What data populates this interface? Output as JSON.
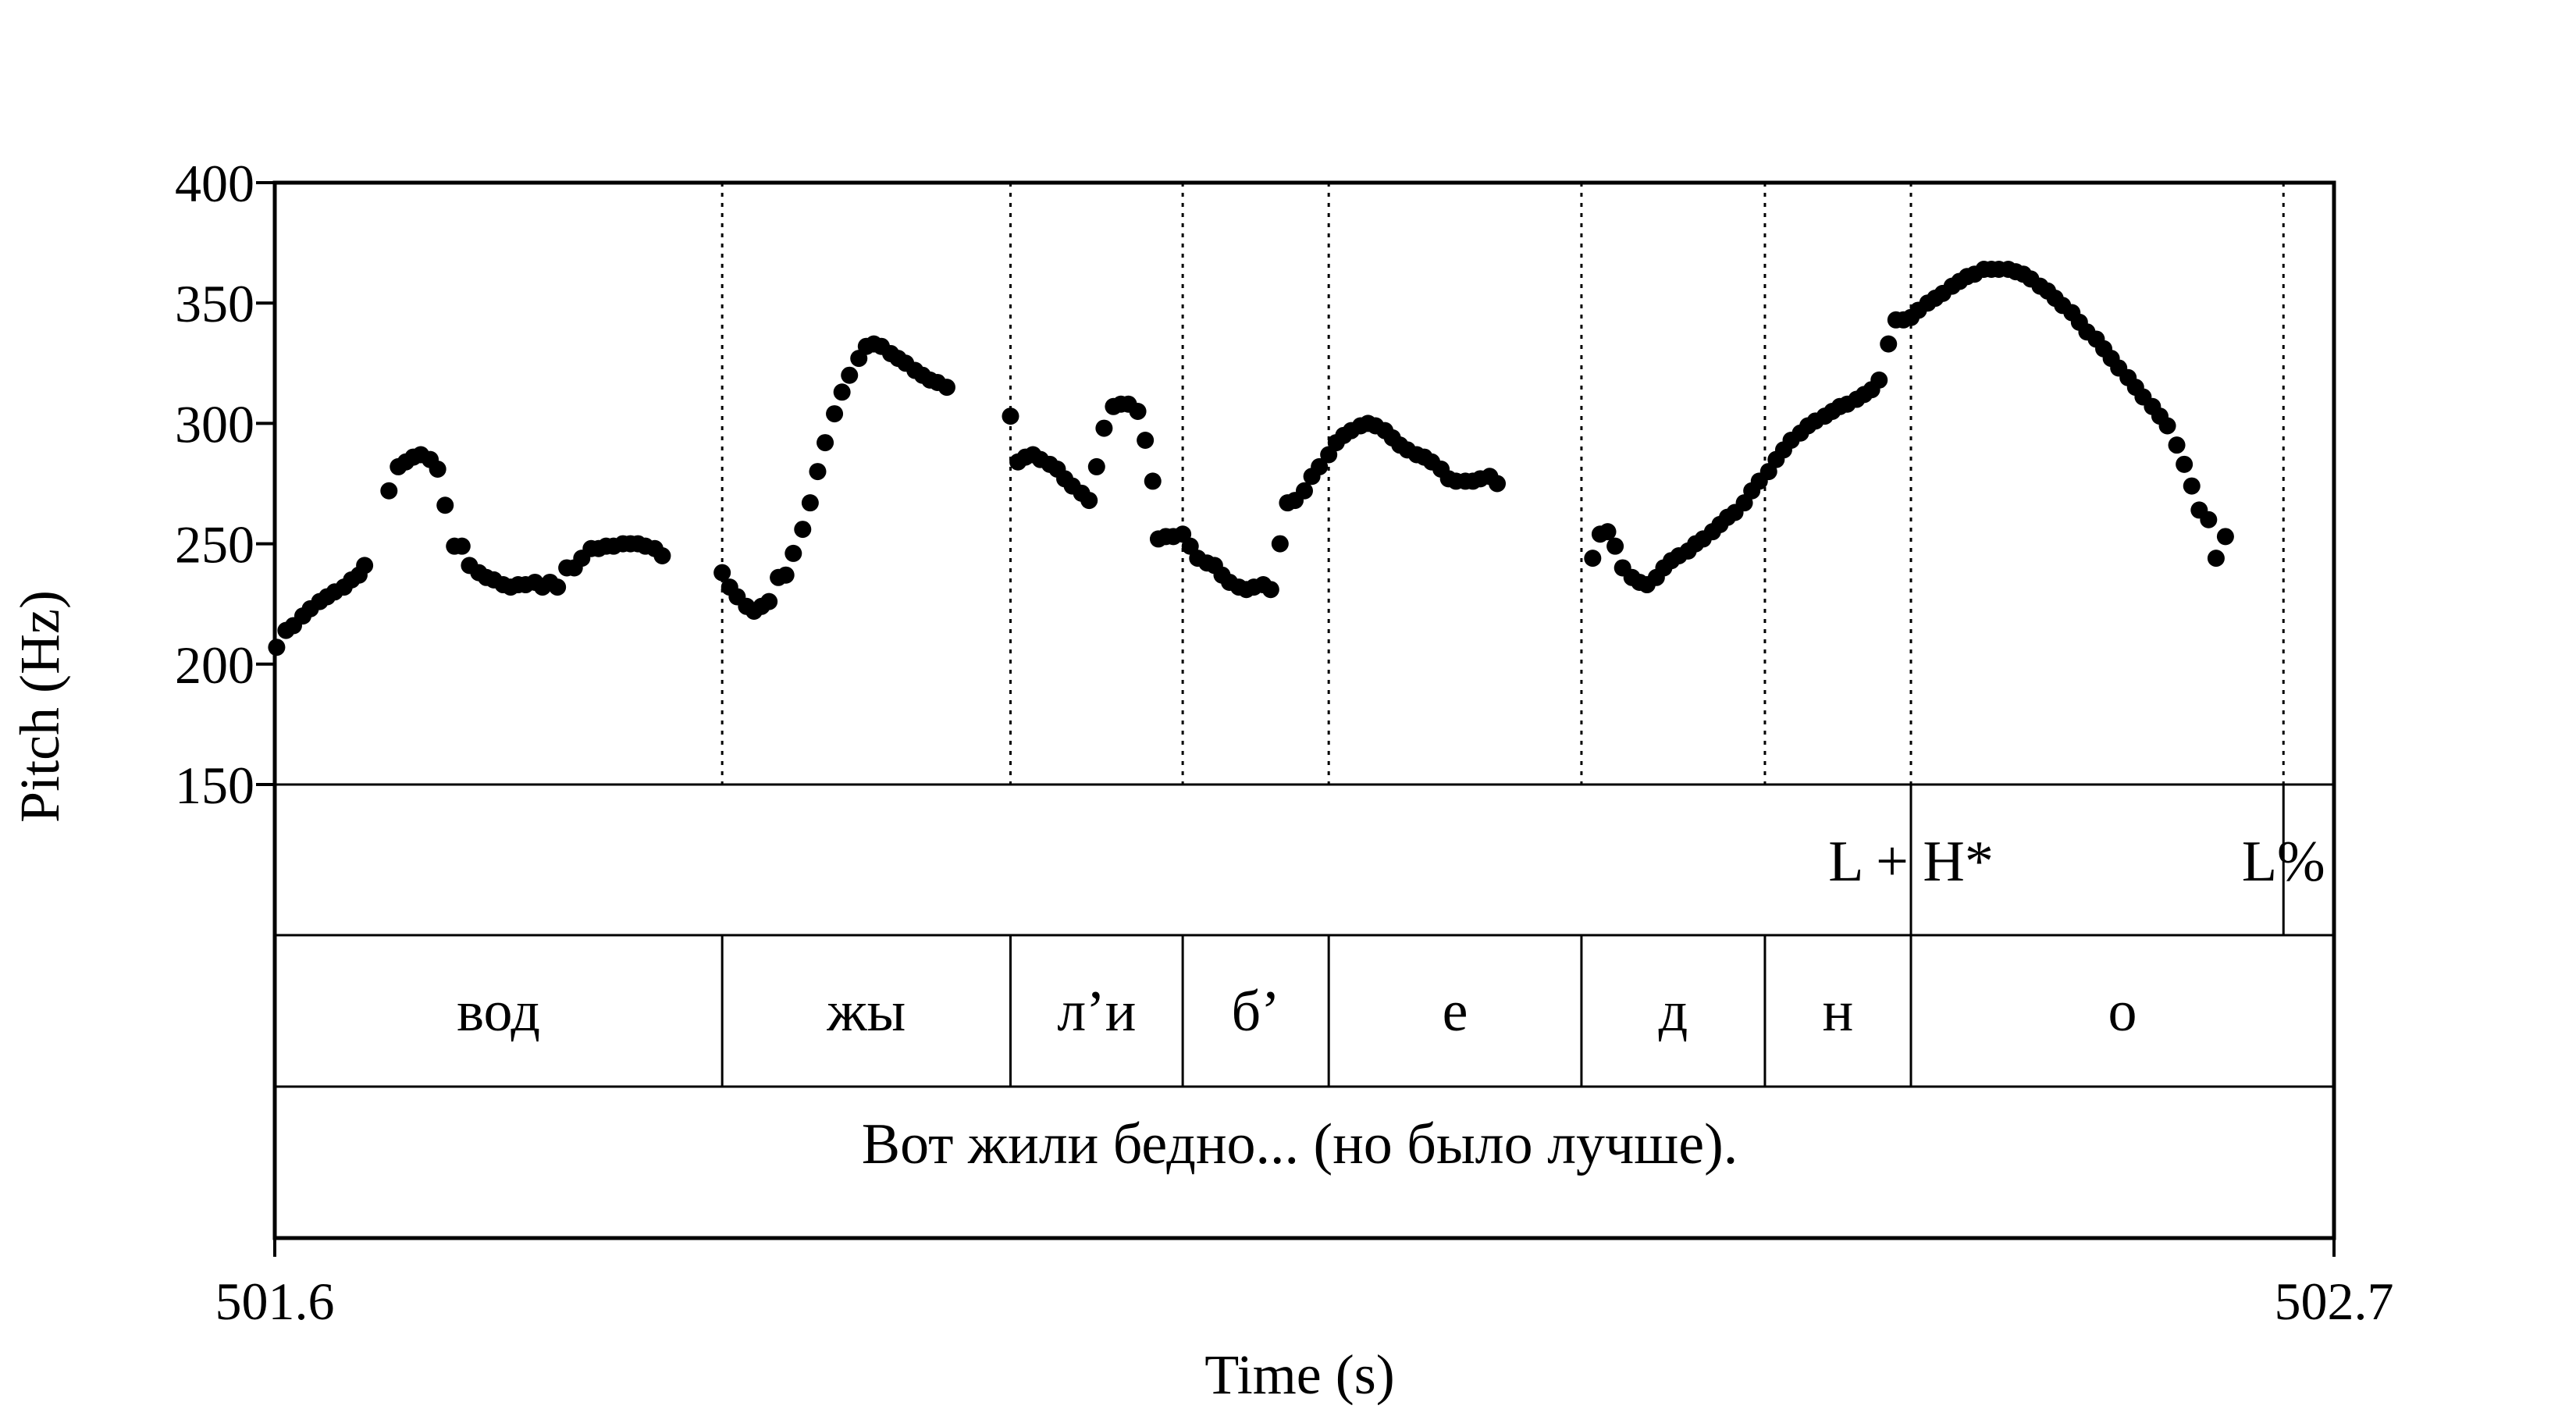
{
  "chart_data": {
    "type": "scatter",
    "ylabel": "Pitch (Hz)",
    "xlabel": "Time (s)",
    "xlim": [
      501.6,
      502.7
    ],
    "ylim": [
      150,
      400
    ],
    "yticks": [
      "400",
      "350",
      "300",
      "250",
      "200",
      "150"
    ],
    "xticks": [
      "501.6",
      "502.7"
    ],
    "tones": [
      {
        "label": "L + H*",
        "t": 502.474
      },
      {
        "label": "L%",
        "t": 502.673
      }
    ],
    "segments": [
      {
        "label": "вод",
        "start": 501.6,
        "end": 501.839
      },
      {
        "label": "жы",
        "start": 501.839,
        "end": 501.993
      },
      {
        "label": "л’и",
        "start": 501.993,
        "end": 502.085
      },
      {
        "label": "б’",
        "start": 502.085,
        "end": 502.163
      },
      {
        "label": "е",
        "start": 502.163,
        "end": 502.298
      },
      {
        "label": "д",
        "start": 502.298,
        "end": 502.396
      },
      {
        "label": "н",
        "start": 502.396,
        "end": 502.474
      },
      {
        "label": "о",
        "start": 502.474,
        "end": 502.7
      }
    ],
    "sentence": "Вот жили бедно... (но было лучше).",
    "pitch_points": [
      [
        501.601,
        207
      ],
      [
        501.606,
        214
      ],
      [
        501.61,
        216
      ],
      [
        501.615,
        220
      ],
      [
        501.619,
        223
      ],
      [
        501.624,
        226
      ],
      [
        501.628,
        228
      ],
      [
        501.632,
        230
      ],
      [
        501.637,
        232
      ],
      [
        501.641,
        235
      ],
      [
        501.645,
        237
      ],
      [
        501.648,
        241
      ],
      [
        501.661,
        272
      ],
      [
        501.666,
        282
      ],
      [
        501.67,
        284
      ],
      [
        501.674,
        286
      ],
      [
        501.678,
        287
      ],
      [
        501.683,
        285
      ],
      [
        501.687,
        281
      ],
      [
        501.691,
        266
      ],
      [
        501.696,
        249
      ],
      [
        501.7,
        249
      ],
      [
        501.704,
        241
      ],
      [
        501.709,
        238
      ],
      [
        501.713,
        236
      ],
      [
        501.717,
        235
      ],
      [
        501.722,
        233
      ],
      [
        501.726,
        232
      ],
      [
        501.73,
        233
      ],
      [
        501.734,
        233
      ],
      [
        501.739,
        234
      ],
      [
        501.743,
        232
      ],
      [
        501.747,
        234
      ],
      [
        501.751,
        232
      ],
      [
        501.756,
        240
      ],
      [
        501.76,
        240
      ],
      [
        501.764,
        244
      ],
      [
        501.769,
        248
      ],
      [
        501.773,
        248
      ],
      [
        501.777,
        249
      ],
      [
        501.781,
        249
      ],
      [
        501.786,
        250
      ],
      [
        501.79,
        250
      ],
      [
        501.794,
        250
      ],
      [
        501.798,
        249
      ],
      [
        501.803,
        248
      ],
      [
        501.807,
        245
      ],
      [
        501.839,
        238
      ],
      [
        501.843,
        232
      ],
      [
        501.847,
        228
      ],
      [
        501.852,
        224
      ],
      [
        501.856,
        222
      ],
      [
        501.86,
        224
      ],
      [
        501.864,
        226
      ],
      [
        501.869,
        236
      ],
      [
        501.873,
        237
      ],
      [
        501.877,
        246
      ],
      [
        501.882,
        256
      ],
      [
        501.886,
        267
      ],
      [
        501.89,
        280
      ],
      [
        501.894,
        292
      ],
      [
        501.899,
        304
      ],
      [
        501.903,
        313
      ],
      [
        501.907,
        320
      ],
      [
        501.912,
        327
      ],
      [
        501.916,
        332
      ],
      [
        501.92,
        333
      ],
      [
        501.924,
        332
      ],
      [
        501.929,
        329
      ],
      [
        501.933,
        327
      ],
      [
        501.937,
        325
      ],
      [
        501.942,
        322
      ],
      [
        501.946,
        320
      ],
      [
        501.95,
        318
      ],
      [
        501.954,
        317
      ],
      [
        501.959,
        315
      ],
      [
        501.993,
        303
      ],
      [
        501.997,
        284
      ],
      [
        502.001,
        286
      ],
      [
        502.005,
        287
      ],
      [
        502.009,
        285
      ],
      [
        502.014,
        283
      ],
      [
        502.018,
        281
      ],
      [
        502.022,
        277
      ],
      [
        502.026,
        274
      ],
      [
        502.031,
        271
      ],
      [
        502.035,
        268
      ],
      [
        502.039,
        282
      ],
      [
        502.043,
        298
      ],
      [
        502.048,
        307
      ],
      [
        502.052,
        308
      ],
      [
        502.056,
        308
      ],
      [
        502.061,
        305
      ],
      [
        502.065,
        293
      ],
      [
        502.069,
        276
      ],
      [
        502.072,
        252
      ],
      [
        502.076,
        253
      ],
      [
        502.08,
        253
      ],
      [
        502.085,
        254
      ],
      [
        502.089,
        249
      ],
      [
        502.093,
        244
      ],
      [
        502.098,
        242
      ],
      [
        502.102,
        241
      ],
      [
        502.106,
        237
      ],
      [
        502.11,
        234
      ],
      [
        502.115,
        232
      ],
      [
        502.119,
        231
      ],
      [
        502.123,
        232
      ],
      [
        502.128,
        233
      ],
      [
        502.132,
        231
      ],
      [
        502.137,
        250
      ],
      [
        502.141,
        267
      ],
      [
        502.145,
        268
      ],
      [
        502.15,
        272
      ],
      [
        502.154,
        278
      ],
      [
        502.158,
        282
      ],
      [
        502.163,
        287
      ],
      [
        502.167,
        292
      ],
      [
        502.171,
        295
      ],
      [
        502.175,
        297
      ],
      [
        502.18,
        299
      ],
      [
        502.184,
        300
      ],
      [
        502.188,
        299
      ],
      [
        502.193,
        297
      ],
      [
        502.197,
        294
      ],
      [
        502.201,
        291
      ],
      [
        502.205,
        289
      ],
      [
        502.21,
        287
      ],
      [
        502.214,
        286
      ],
      [
        502.218,
        284
      ],
      [
        502.223,
        281
      ],
      [
        502.227,
        277
      ],
      [
        502.231,
        276
      ],
      [
        502.236,
        276
      ],
      [
        502.24,
        276
      ],
      [
        502.244,
        277
      ],
      [
        502.249,
        278
      ],
      [
        502.253,
        275
      ],
      [
        502.304,
        244
      ],
      [
        502.308,
        254
      ],
      [
        502.312,
        255
      ],
      [
        502.316,
        249
      ],
      [
        502.32,
        240
      ],
      [
        502.325,
        236
      ],
      [
        502.329,
        234
      ],
      [
        502.333,
        233
      ],
      [
        502.338,
        236
      ],
      [
        502.342,
        240
      ],
      [
        502.346,
        243
      ],
      [
        502.35,
        245
      ],
      [
        502.355,
        247
      ],
      [
        502.359,
        250
      ],
      [
        502.363,
        252
      ],
      [
        502.368,
        255
      ],
      [
        502.372,
        258
      ],
      [
        502.376,
        261
      ],
      [
        502.38,
        263
      ],
      [
        502.385,
        267
      ],
      [
        502.389,
        272
      ],
      [
        502.393,
        276
      ],
      [
        502.398,
        280
      ],
      [
        502.402,
        285
      ],
      [
        502.406,
        289
      ],
      [
        502.41,
        293
      ],
      [
        502.415,
        296
      ],
      [
        502.419,
        299
      ],
      [
        502.423,
        301
      ],
      [
        502.428,
        303
      ],
      [
        502.432,
        305
      ],
      [
        502.436,
        307
      ],
      [
        502.44,
        308
      ],
      [
        502.445,
        310
      ],
      [
        502.449,
        312
      ],
      [
        502.453,
        314
      ],
      [
        502.457,
        318
      ],
      [
        502.462,
        333
      ],
      [
        502.466,
        343
      ],
      [
        502.47,
        343
      ],
      [
        502.474,
        344
      ],
      [
        502.478,
        347
      ],
      [
        502.483,
        350
      ],
      [
        502.487,
        352
      ],
      [
        502.491,
        354
      ],
      [
        502.496,
        357
      ],
      [
        502.5,
        359
      ],
      [
        502.504,
        361
      ],
      [
        502.508,
        362
      ],
      [
        502.513,
        364
      ],
      [
        502.517,
        364
      ],
      [
        502.521,
        364
      ],
      [
        502.526,
        364
      ],
      [
        502.53,
        363
      ],
      [
        502.534,
        362
      ],
      [
        502.538,
        360
      ],
      [
        502.543,
        357
      ],
      [
        502.547,
        355
      ],
      [
        502.551,
        352
      ],
      [
        502.555,
        349
      ],
      [
        502.56,
        346
      ],
      [
        502.564,
        342
      ],
      [
        502.568,
        338
      ],
      [
        502.573,
        335
      ],
      [
        502.577,
        331
      ],
      [
        502.581,
        327
      ],
      [
        502.585,
        323
      ],
      [
        502.59,
        319
      ],
      [
        502.594,
        315
      ],
      [
        502.598,
        311
      ],
      [
        502.603,
        307
      ],
      [
        502.607,
        303
      ],
      [
        502.611,
        299
      ],
      [
        502.616,
        291
      ],
      [
        502.62,
        283
      ],
      [
        502.624,
        274
      ],
      [
        502.628,
        264
      ],
      [
        502.633,
        260
      ],
      [
        502.637,
        244
      ],
      [
        502.642,
        253
      ]
    ]
  }
}
